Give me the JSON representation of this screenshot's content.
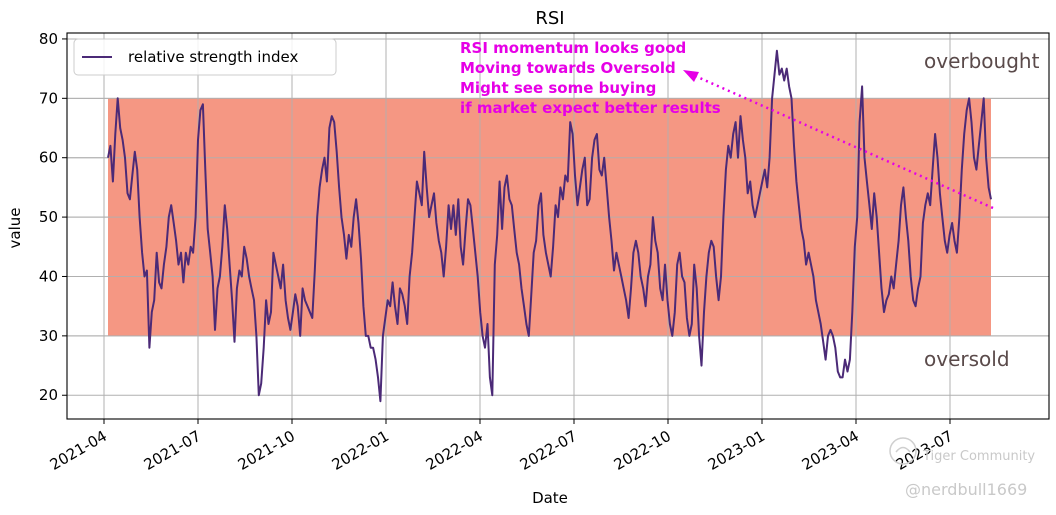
{
  "chart_data": {
    "type": "line",
    "title": "RSI",
    "xlabel": "Date",
    "ylabel": "value",
    "ylim": [
      16,
      81
    ],
    "y_ticks": [
      20,
      30,
      40,
      50,
      60,
      70,
      80
    ],
    "x_tick_labels": [
      "2021-04",
      "2021-07",
      "2021-10",
      "2022-01",
      "2022-04",
      "2022-07",
      "2022-10",
      "2023-01",
      "2023-04",
      "2023-07"
    ],
    "grid": true,
    "legend": {
      "placement": "top-left",
      "entries": [
        "relative strength index"
      ]
    },
    "band": {
      "lower": 30,
      "upper": 70,
      "color": "#f4917c",
      "upper_label": "overbought",
      "lower_label": "oversold"
    },
    "series": [
      {
        "name": "relative strength index",
        "color": "#4b2a77",
        "values": [
          60,
          62,
          56,
          64,
          70,
          65,
          63,
          60,
          54,
          53,
          57,
          61,
          58,
          50,
          44,
          40,
          41,
          28,
          34,
          36,
          44,
          39,
          38,
          42,
          45,
          50,
          52,
          49,
          46,
          42,
          44,
          39,
          44,
          42,
          45,
          44,
          50,
          63,
          68,
          69,
          58,
          48,
          44,
          40,
          31,
          38,
          40,
          45,
          52,
          48,
          42,
          36,
          29,
          38,
          41,
          40,
          45,
          43,
          40,
          38,
          36,
          30,
          20,
          22,
          28,
          36,
          32,
          34,
          44,
          42,
          40,
          38,
          42,
          36,
          33,
          31,
          34,
          37,
          35,
          30,
          38,
          36,
          35,
          34,
          33,
          41,
          50,
          55,
          58,
          60,
          56,
          65,
          67,
          66,
          61,
          55,
          50,
          47,
          43,
          47,
          45,
          50,
          53,
          49,
          43,
          35,
          30,
          30,
          28,
          28,
          26,
          23,
          19,
          30,
          33,
          36,
          35,
          39,
          35,
          32,
          38,
          37,
          35,
          32,
          40,
          44,
          50,
          56,
          54,
          52,
          61,
          55,
          50,
          52,
          54,
          49,
          46,
          44,
          40,
          45,
          52,
          48,
          52,
          47,
          53,
          45,
          42,
          48,
          53,
          52,
          48,
          44,
          40,
          34,
          30,
          28,
          32,
          23,
          20,
          42,
          47,
          56,
          48,
          55,
          57,
          53,
          52,
          48,
          44,
          42,
          38,
          35,
          32,
          30,
          37,
          44,
          46,
          52,
          54,
          47,
          44,
          42,
          40,
          45,
          52,
          50,
          55,
          53,
          57,
          56,
          66,
          64,
          57,
          52,
          55,
          58,
          60,
          52,
          53,
          60,
          63,
          64,
          58,
          57,
          60,
          55,
          50,
          46,
          41,
          44,
          42,
          40,
          38,
          36,
          33,
          38,
          44,
          46,
          44,
          40,
          38,
          35,
          40,
          42,
          50,
          46,
          44,
          38,
          36,
          42,
          36,
          32,
          30,
          34,
          42,
          44,
          40,
          39,
          33,
          30,
          32,
          42,
          38,
          30,
          25,
          34,
          40,
          44,
          46,
          45,
          40,
          36,
          40,
          50,
          58,
          62,
          60,
          64,
          66,
          60,
          67,
          63,
          60,
          54,
          56,
          52,
          50,
          52,
          54,
          56,
          58,
          55,
          60,
          70,
          74,
          78,
          74,
          75,
          73,
          75,
          72,
          70,
          62,
          56,
          52,
          48,
          46,
          42,
          44,
          42,
          40,
          36,
          34,
          32,
          29,
          26,
          30,
          31,
          30,
          28,
          24,
          23,
          23,
          26,
          24,
          26,
          34,
          45,
          50,
          66,
          72,
          60,
          56,
          52,
          48,
          54,
          50,
          44,
          38,
          34,
          36,
          37,
          40,
          38,
          42,
          46,
          52,
          55,
          50,
          46,
          40,
          36,
          35,
          38,
          40,
          49,
          52,
          54,
          52,
          58,
          64,
          60,
          54,
          50,
          46,
          44,
          47,
          49,
          46,
          44,
          50,
          58,
          64,
          68,
          70,
          66,
          60,
          58,
          62,
          66,
          70,
          60,
          55,
          53
        ]
      }
    ]
  },
  "annotation": {
    "lines": [
      "RSI momentum looks good",
      "Moving towards Oversold",
      "Might see some buying",
      "if market expect better results"
    ],
    "color": "#e600e6"
  },
  "watermark": {
    "brand": "Tiger Community",
    "handle": "@nerdbull1669"
  }
}
